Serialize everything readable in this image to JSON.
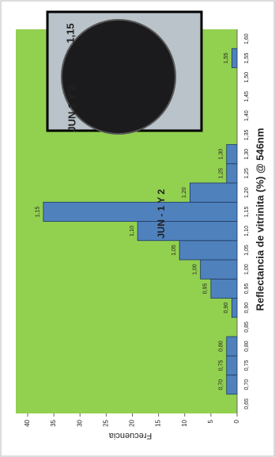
{
  "chart_data": {
    "type": "bar",
    "title": "JUN - 1 Y 2",
    "x_label": "Reflectancia de vitrinita (%)  @ 546nm",
    "y_label": "Frecuencia",
    "categories": [
      "0,65",
      "0,70",
      "0,75",
      "0,80",
      "0,85",
      "0,90",
      "0,95",
      "1,00",
      "1,05",
      "1,10",
      "1,15",
      "1,20",
      "1,25",
      "1,30",
      "1,35",
      "1,40",
      "1,45",
      "1,50",
      "1,55",
      "1,60"
    ],
    "values": [
      0,
      2,
      2,
      2,
      0,
      1,
      5,
      7,
      11,
      19,
      37,
      9,
      2,
      2,
      0,
      0,
      0,
      0,
      1,
      0
    ],
    "color": "#4f81bd",
    "background": "#92d050",
    "ylim": [
      0,
      40
    ],
    "yticks": [
      0,
      5,
      10,
      15,
      20,
      25,
      30,
      35,
      40
    ],
    "inset": {
      "label": "JUN 1 Y 2",
      "value": "1,15"
    }
  }
}
